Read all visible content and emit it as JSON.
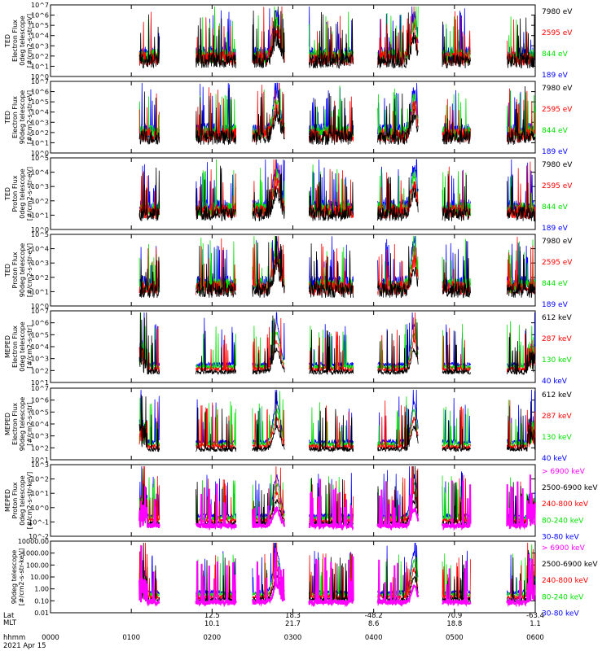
{
  "colors": {
    "blue": "#0000ff",
    "red": "#ff0000",
    "green": "#00e000",
    "black": "#000000",
    "magenta": "#ff00ff"
  },
  "chart_data": [
    {
      "type": "line",
      "panel": 1,
      "ylabel": [
        "TED",
        "Electron Flux",
        "0deg telescope",
        "[#/cm2-s-str-eV]"
      ],
      "ylog": true,
      "ylim_exp": [
        0,
        7
      ],
      "yticks": [
        "10^7",
        "10^6",
        "10^5",
        "10^4",
        "10^3",
        "10^2",
        "10^1",
        "10^0"
      ],
      "legend": [
        {
          "text": "7980 eV",
          "color": "black"
        },
        {
          "text": "2595 eV",
          "color": "red"
        },
        {
          "text": "844 eV",
          "color": "green"
        },
        {
          "text": "189 eV",
          "color": "blue"
        }
      ]
    },
    {
      "type": "line",
      "panel": 2,
      "ylabel": [
        "TED",
        "Electron Flux",
        "90deg telescope",
        "[#/cm2-s-str-eV]"
      ],
      "ylog": true,
      "ylim_exp": [
        0,
        7
      ],
      "yticks": [
        "10^7",
        "10^6",
        "10^5",
        "10^4",
        "10^3",
        "10^2",
        "10^1",
        "10^0"
      ],
      "legend": [
        {
          "text": "7980 eV",
          "color": "black"
        },
        {
          "text": "2595 eV",
          "color": "red"
        },
        {
          "text": "844 eV",
          "color": "green"
        },
        {
          "text": "189 eV",
          "color": "blue"
        }
      ]
    },
    {
      "type": "line",
      "panel": 3,
      "ylabel": [
        "TED",
        "Proton Flux",
        "0deg telescope",
        "[#/cm2-s-str-eV]"
      ],
      "ylog": true,
      "ylim_exp": [
        0,
        5
      ],
      "yticks": [
        "10^5",
        "10^4",
        "10^3",
        "10^2",
        "10^1",
        "10^0"
      ],
      "legend": [
        {
          "text": "7980 eV",
          "color": "black"
        },
        {
          "text": "2595 eV",
          "color": "red"
        },
        {
          "text": "844 eV",
          "color": "green"
        },
        {
          "text": "189 eV",
          "color": "blue"
        }
      ]
    },
    {
      "type": "line",
      "panel": 4,
      "ylabel": [
        "TED",
        "Proton Flux",
        "90deg telescope",
        "[#/cm2-s-str-eV]"
      ],
      "ylog": true,
      "ylim_exp": [
        0,
        5
      ],
      "yticks": [
        "10^5",
        "10^4",
        "10^3",
        "10^2",
        "10^1",
        "10^0"
      ],
      "legend": [
        {
          "text": "7980 eV",
          "color": "black"
        },
        {
          "text": "2595 eV",
          "color": "red"
        },
        {
          "text": "844 eV",
          "color": "green"
        },
        {
          "text": "189 eV",
          "color": "blue"
        }
      ]
    },
    {
      "type": "line",
      "panel": 5,
      "ylabel": [
        "MEPED",
        "Electron Flux",
        "0deg telescope",
        "[#/cm2-s-str]"
      ],
      "ylog": true,
      "ylim_exp": [
        1,
        7
      ],
      "yticks": [
        "10^7",
        "10^6",
        "10^5",
        "10^4",
        "10^3",
        "10^2",
        "10^1"
      ],
      "legend": [
        {
          "text": "612 keV",
          "color": "black"
        },
        {
          "text": "287 keV",
          "color": "red"
        },
        {
          "text": "130 keV",
          "color": "green"
        },
        {
          "text": "40 keV",
          "color": "blue"
        }
      ]
    },
    {
      "type": "line",
      "panel": 6,
      "ylabel": [
        "MEPED",
        "Electron Flux",
        "90deg telescope",
        "[#/cm2-s-str]"
      ],
      "ylog": true,
      "ylim_exp": [
        1,
        7
      ],
      "yticks": [
        "10^7",
        "10^6",
        "10^5",
        "10^4",
        "10^3",
        "10^2",
        "10^1"
      ],
      "legend": [
        {
          "text": "612 keV",
          "color": "black"
        },
        {
          "text": "287 keV",
          "color": "red"
        },
        {
          "text": "130 keV",
          "color": "green"
        },
        {
          "text": "40 keV",
          "color": "blue"
        }
      ]
    },
    {
      "type": "line",
      "panel": 7,
      "ylabel": [
        "MEPED",
        "Proton Flux",
        "0deg telescope",
        "[#/cm2-s-str-keV]"
      ],
      "ylog": true,
      "ylim_exp": [
        -2,
        4
      ],
      "yticks": [
        "10^3",
        "10^2",
        "10^1",
        "10^0",
        "10^-1",
        "10^-2"
      ],
      "legend": [
        {
          "text": "> 6900 keV",
          "color": "magenta"
        },
        {
          "text": "2500-6900 keV",
          "color": "black"
        },
        {
          "text": "240-800 keV",
          "color": "red"
        },
        {
          "text": "80-240 keV",
          "color": "green"
        },
        {
          "text": "30-80 keV",
          "color": "blue"
        }
      ]
    },
    {
      "type": "line",
      "panel": 8,
      "ylabel": [
        "90deg telescope",
        "[#/cm2-s-str-keV]"
      ],
      "ylog": true,
      "ylim_exp": [
        -2,
        4
      ],
      "yticks": [
        "10000.00",
        "1000.00",
        "100.00",
        "10.00",
        "1.00",
        "0.10",
        "0.01"
      ],
      "legend": [
        {
          "text": "> 6900 keV",
          "color": "magenta"
        },
        {
          "text": "2500-6900 keV",
          "color": "black"
        },
        {
          "text": "240-800 keV",
          "color": "red"
        },
        {
          "text": "80-240 keV",
          "color": "green"
        },
        {
          "text": "30-80 keV",
          "color": "blue"
        }
      ]
    }
  ],
  "xaxis": {
    "row_labels": [
      "Lat",
      "MLT",
      "hhmm"
    ],
    "date": "2021 Apr 15",
    "ticks": [
      {
        "hhmm": "0000",
        "lat": "",
        "mlt": ""
      },
      {
        "hhmm": "0100",
        "lat": "",
        "mlt": ""
      },
      {
        "hhmm": "0200",
        "lat": "12.5",
        "mlt": "10.1"
      },
      {
        "hhmm": "0300",
        "lat": "18.3",
        "mlt": "21.7"
      },
      {
        "hhmm": "0400",
        "lat": "-48.2",
        "mlt": "8.6"
      },
      {
        "hhmm": "0500",
        "lat": "70.9",
        "mlt": "18.8"
      },
      {
        "hhmm": "0600",
        "lat": "-63.4",
        "mlt": "1.1"
      }
    ]
  }
}
